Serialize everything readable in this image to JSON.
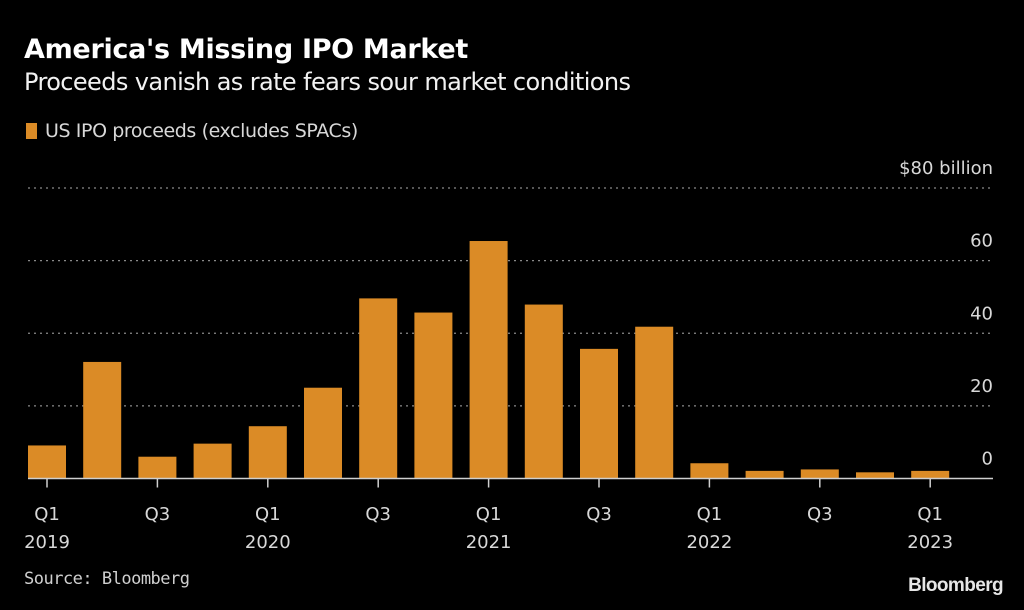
{
  "header": {
    "title": "America's Missing IPO Market",
    "subtitle": "Proceeds vanish as rate fears sour market conditions"
  },
  "legend": {
    "label": "US IPO proceeds (excludes SPACs)",
    "color": "#DB8B26"
  },
  "colors": {
    "background": "#000000",
    "bar": "#DB8B26",
    "grid": "#8a8a8a",
    "axis": "#cfcfcf",
    "text": "#d8d8d8"
  },
  "chart_data": {
    "type": "bar",
    "title": "America's Missing IPO Market",
    "subtitle": "Proceeds vanish as rate fears sour market conditions",
    "xlabel": "",
    "ylabel": "$ billion",
    "ylim": [
      0,
      80
    ],
    "yticks": [
      0,
      20,
      40,
      60,
      80
    ],
    "ytick_labels": [
      "0",
      "20",
      "40",
      "60",
      "$80 billion"
    ],
    "grid": true,
    "legend_position": "top-left",
    "categories": [
      "Q1 2019",
      "Q2 2019",
      "Q3 2019",
      "Q4 2019",
      "Q1 2020",
      "Q2 2020",
      "Q3 2020",
      "Q4 2020",
      "Q1 2021",
      "Q2 2021",
      "Q3 2021",
      "Q4 2021",
      "Q1 2022",
      "Q2 2022",
      "Q3 2022",
      "Q4 2022",
      "Q1 2023"
    ],
    "series": [
      {
        "name": "US IPO proceeds (excludes SPACs)",
        "values": [
          9.1,
          32.1,
          6.0,
          9.6,
          14.4,
          25.0,
          49.6,
          45.7,
          65.4,
          47.9,
          35.7,
          41.8,
          4.2,
          2.1,
          2.5,
          1.7,
          2.1
        ]
      }
    ],
    "xtick_labels": [
      {
        "index": 0,
        "quarter": "Q1",
        "year": "2019"
      },
      {
        "index": 2,
        "quarter": "Q3",
        "year": ""
      },
      {
        "index": 4,
        "quarter": "Q1",
        "year": "2020"
      },
      {
        "index": 6,
        "quarter": "Q3",
        "year": ""
      },
      {
        "index": 8,
        "quarter": "Q1",
        "year": "2021"
      },
      {
        "index": 10,
        "quarter": "Q3",
        "year": ""
      },
      {
        "index": 12,
        "quarter": "Q1",
        "year": "2022"
      },
      {
        "index": 14,
        "quarter": "Q3",
        "year": ""
      },
      {
        "index": 16,
        "quarter": "Q1",
        "year": "2023"
      }
    ]
  },
  "footer": {
    "source": "Source: Bloomberg",
    "brand": "Bloomberg"
  }
}
